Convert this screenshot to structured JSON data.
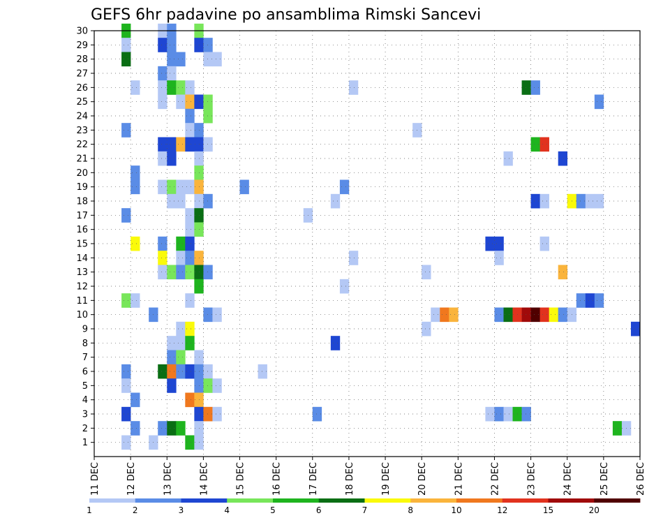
{
  "chart_data": {
    "type": "heatmap",
    "title": "GEFS 6hr padavine po ansamblima Rimski Sancevi",
    "y_ticks": [
      "1",
      "2",
      "3",
      "4",
      "5",
      "6",
      "7",
      "8",
      "9",
      "10",
      "11",
      "12",
      "13",
      "14",
      "15",
      "16",
      "17",
      "18",
      "19",
      "20",
      "21",
      "22",
      "23",
      "24",
      "25",
      "26",
      "27",
      "28",
      "29",
      "30"
    ],
    "x_ticks": [
      "11 DEC",
      "12 DEC",
      "13 DEC",
      "14 DEC",
      "15 DEC",
      "16 DEC",
      "17 DEC",
      "18 DEC",
      "19 DEC",
      "20 DEC",
      "21 DEC",
      "22 DEC",
      "23 DEC",
      "24 DEC",
      "25 DEC",
      "26 DEC"
    ],
    "x_range": [
      "11 DEC",
      "26 DEC"
    ],
    "y_range": [
      0,
      30
    ],
    "grid": true,
    "colorbar": {
      "position": "bottom",
      "labels": [
        "1",
        "2",
        "3",
        "4",
        "5",
        "6",
        "7",
        "8",
        "10",
        "12",
        "15",
        "20"
      ],
      "bins": [
        {
          "from": 1,
          "to": 2,
          "color": "#b4c8f5"
        },
        {
          "from": 2,
          "to": 3,
          "color": "#5a8ce6"
        },
        {
          "from": 3,
          "to": 4,
          "color": "#1e46d2"
        },
        {
          "from": 4,
          "to": 5,
          "color": "#78e65a"
        },
        {
          "from": 5,
          "to": 6,
          "color": "#1eb41e"
        },
        {
          "from": 6,
          "to": 7,
          "color": "#0a6e14"
        },
        {
          "from": 7,
          "to": 8,
          "color": "#fafa0a"
        },
        {
          "from": 8,
          "to": 10,
          "color": "#fab43c"
        },
        {
          "from": 10,
          "to": 12,
          "color": "#f0781e"
        },
        {
          "from": 12,
          "to": 15,
          "color": "#e1321e"
        },
        {
          "from": 15,
          "to": 20,
          "color": "#a00a0a"
        },
        {
          "from": 20,
          "to": null,
          "color": "#500000"
        }
      ]
    },
    "cells_note_units": "each cell = [day offset from 11 DEC (6h steps as .25), ensemble member, precipitation value]",
    "cells": [
      [
        0.75,
        30,
        5.5
      ],
      [
        1.75,
        30,
        1.5
      ],
      [
        2,
        30,
        2.5
      ],
      [
        2.75,
        30,
        4.5
      ],
      [
        0.75,
        29,
        1.5
      ],
      [
        1.75,
        29,
        3.5
      ],
      [
        2,
        29,
        2.5
      ],
      [
        2.75,
        29,
        3.5
      ],
      [
        3,
        29,
        2.5
      ],
      [
        0.75,
        28,
        6.5
      ],
      [
        2,
        28,
        2.5
      ],
      [
        2.25,
        28,
        2.5
      ],
      [
        3,
        28,
        1.5
      ],
      [
        3.25,
        28,
        1.5
      ],
      [
        1.75,
        27,
        2.5
      ],
      [
        2,
        27,
        1.5
      ],
      [
        1,
        26,
        1.5
      ],
      [
        1.75,
        26,
        1.5
      ],
      [
        2,
        26,
        5.5
      ],
      [
        2.25,
        26,
        4.5
      ],
      [
        2.5,
        26,
        1.5
      ],
      [
        7,
        26,
        1.5
      ],
      [
        11.75,
        26,
        6.5
      ],
      [
        12,
        26,
        2.5
      ],
      [
        1.75,
        25,
        1.5
      ],
      [
        2.25,
        25,
        1.5
      ],
      [
        2.5,
        25,
        9
      ],
      [
        2.75,
        25,
        3.5
      ],
      [
        3,
        25,
        4.5
      ],
      [
        13.75,
        25,
        2.5
      ],
      [
        2.5,
        24,
        2.5
      ],
      [
        3,
        24,
        4.5
      ],
      [
        0.75,
        23,
        2.5
      ],
      [
        2.5,
        23,
        1.5
      ],
      [
        2.75,
        23,
        2.5
      ],
      [
        8.75,
        23,
        1.5
      ],
      [
        1.75,
        22,
        3.5
      ],
      [
        2,
        22,
        3.5
      ],
      [
        2.25,
        22,
        9
      ],
      [
        2.5,
        22,
        3.5
      ],
      [
        2.75,
        22,
        3.5
      ],
      [
        3,
        22,
        1.5
      ],
      [
        12,
        22,
        5.5
      ],
      [
        12.25,
        22,
        13
      ],
      [
        1.75,
        21,
        1.5
      ],
      [
        2,
        21,
        3.5
      ],
      [
        2.75,
        21,
        1.5
      ],
      [
        11.25,
        21,
        1.5
      ],
      [
        12.75,
        21,
        3.5
      ],
      [
        1,
        20,
        2.5
      ],
      [
        2.75,
        20,
        4.5
      ],
      [
        1,
        19,
        2.5
      ],
      [
        1.75,
        19,
        1.5
      ],
      [
        2,
        19,
        4.5
      ],
      [
        2.25,
        19,
        1.5
      ],
      [
        2.5,
        19,
        1.5
      ],
      [
        2.75,
        19,
        9
      ],
      [
        4,
        19,
        2.5
      ],
      [
        6.75,
        19,
        2.5
      ],
      [
        2,
        18,
        1.5
      ],
      [
        2.25,
        18,
        1.5
      ],
      [
        2.75,
        18,
        1.5
      ],
      [
        3,
        18,
        2.5
      ],
      [
        6.5,
        18,
        1.5
      ],
      [
        12,
        18,
        3.5
      ],
      [
        12.25,
        18,
        1.5
      ],
      [
        13,
        18,
        7.5
      ],
      [
        13.25,
        18,
        2.5
      ],
      [
        13.5,
        18,
        1.5
      ],
      [
        13.75,
        18,
        1.5
      ],
      [
        0.75,
        17,
        2.5
      ],
      [
        2.5,
        17,
        1.5
      ],
      [
        2.75,
        17,
        6.5
      ],
      [
        5.75,
        17,
        1.5
      ],
      [
        2.5,
        16,
        1.5
      ],
      [
        2.75,
        16,
        4.5
      ],
      [
        1,
        15,
        7.5
      ],
      [
        1.75,
        15,
        2.5
      ],
      [
        2.25,
        15,
        5.5
      ],
      [
        2.5,
        15,
        3.5
      ],
      [
        10.75,
        15,
        3.5
      ],
      [
        11,
        15,
        3.5
      ],
      [
        12.25,
        15,
        1.5
      ],
      [
        1.75,
        14,
        7.5
      ],
      [
        2.25,
        14,
        1.5
      ],
      [
        2.5,
        14,
        2.5
      ],
      [
        2.75,
        14,
        9
      ],
      [
        7,
        14,
        1.5
      ],
      [
        11,
        14,
        1.5
      ],
      [
        1.75,
        13,
        1.5
      ],
      [
        2,
        13,
        4.5
      ],
      [
        2.25,
        13,
        2.5
      ],
      [
        2.5,
        13,
        4.5
      ],
      [
        2.75,
        13,
        6.5
      ],
      [
        3,
        13,
        2.5
      ],
      [
        9,
        13,
        1.5
      ],
      [
        12.75,
        13,
        9
      ],
      [
        2.75,
        12,
        5.5
      ],
      [
        6.75,
        12,
        1.5
      ],
      [
        0.75,
        11,
        4.5
      ],
      [
        1,
        11,
        1.5
      ],
      [
        2.5,
        11,
        1.5
      ],
      [
        13.25,
        11,
        2.5
      ],
      [
        13.5,
        11,
        3.5
      ],
      [
        13.75,
        11,
        2.5
      ],
      [
        1.5,
        10,
        2.5
      ],
      [
        3,
        10,
        2.5
      ],
      [
        3.25,
        10,
        1.5
      ],
      [
        9.25,
        10,
        1.5
      ],
      [
        9.5,
        10,
        11
      ],
      [
        9.75,
        10,
        9
      ],
      [
        11,
        10,
        2.5
      ],
      [
        11.25,
        10,
        6.5
      ],
      [
        11.5,
        10,
        13
      ],
      [
        11.75,
        10,
        17
      ],
      [
        12,
        10,
        22
      ],
      [
        12.25,
        10,
        13
      ],
      [
        12.5,
        10,
        7.5
      ],
      [
        12.75,
        10,
        2.5
      ],
      [
        13,
        10,
        1.5
      ],
      [
        2.25,
        9,
        1.5
      ],
      [
        2.5,
        9,
        7.5
      ],
      [
        9,
        9,
        1.5
      ],
      [
        14.75,
        9,
        3.5
      ],
      [
        2,
        8,
        1.5
      ],
      [
        2.25,
        8,
        1.5
      ],
      [
        2.5,
        8,
        5.5
      ],
      [
        6.5,
        8,
        3.5
      ],
      [
        2,
        7,
        2.5
      ],
      [
        2.25,
        7,
        4.5
      ],
      [
        2.75,
        7,
        1.5
      ],
      [
        0.75,
        6,
        2.5
      ],
      [
        1.75,
        6,
        6.5
      ],
      [
        2,
        6,
        11
      ],
      [
        2.25,
        6,
        2.5
      ],
      [
        2.5,
        6,
        3.5
      ],
      [
        2.75,
        6,
        2.5
      ],
      [
        3,
        6,
        1.5
      ],
      [
        4.5,
        6,
        1.5
      ],
      [
        0.75,
        5,
        1.5
      ],
      [
        2,
        5,
        3.5
      ],
      [
        2.75,
        5,
        2.5
      ],
      [
        3,
        5,
        4.5
      ],
      [
        3.25,
        5,
        1.5
      ],
      [
        1,
        4,
        2.5
      ],
      [
        2.5,
        4,
        11
      ],
      [
        2.75,
        4,
        9
      ],
      [
        0.75,
        3,
        3.5
      ],
      [
        2.75,
        3,
        3.5
      ],
      [
        3,
        3,
        11
      ],
      [
        3.25,
        3,
        1.5
      ],
      [
        6,
        3,
        2.5
      ],
      [
        10.75,
        3,
        1.5
      ],
      [
        11,
        3,
        2.5
      ],
      [
        11.25,
        3,
        1.5
      ],
      [
        11.5,
        3,
        5.5
      ],
      [
        11.75,
        3,
        2.5
      ],
      [
        1,
        2,
        2.5
      ],
      [
        1.75,
        2,
        2.5
      ],
      [
        2,
        2,
        6.5
      ],
      [
        2.25,
        2,
        5.5
      ],
      [
        2.75,
        2,
        1.5
      ],
      [
        14.25,
        2,
        5.5
      ],
      [
        14.5,
        2,
        1.5
      ],
      [
        0.75,
        1,
        1.5
      ],
      [
        1.5,
        1,
        1.5
      ],
      [
        2.5,
        1,
        5.5
      ],
      [
        2.75,
        1,
        1.5
      ]
    ]
  }
}
